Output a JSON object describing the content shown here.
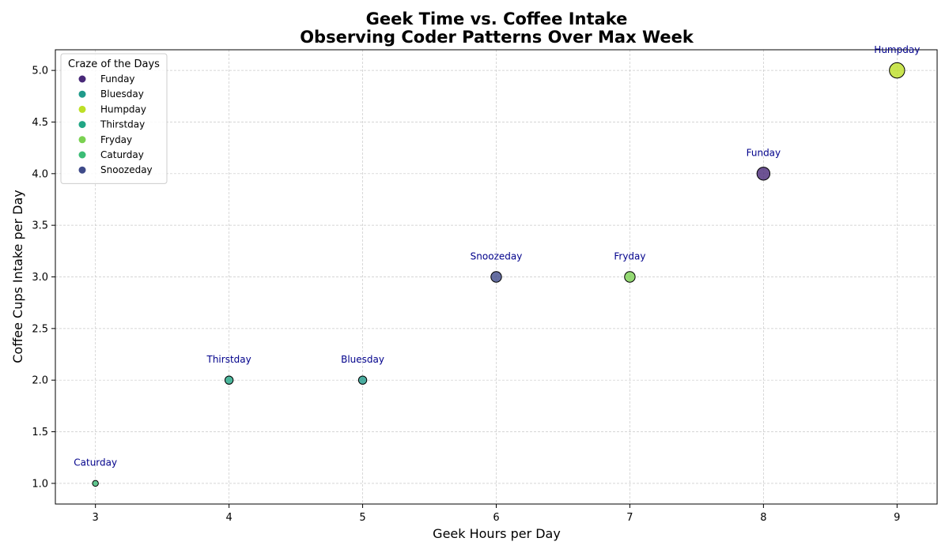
{
  "chart_data": {
    "type": "scatter",
    "title": "Geek Time vs. Coffee Intake",
    "subtitle": "Observing Coder Patterns Over Max Week",
    "xlabel": "Geek Hours per Day",
    "ylabel": "Coffee Cups Intake per Day",
    "xlim": [
      2.7,
      9.3
    ],
    "ylim": [
      0.8,
      5.2
    ],
    "xticks": [
      3,
      4,
      5,
      6,
      7,
      8,
      9
    ],
    "yticks": [
      1.0,
      1.5,
      2.0,
      2.5,
      3.0,
      3.5,
      4.0,
      4.5,
      5.0
    ],
    "grid": true,
    "legend": {
      "title": "Craze of the Days",
      "position": "top-left"
    },
    "label_color": "#00008b",
    "points": [
      {
        "label": "Funday",
        "x": 8,
        "y": 4,
        "color": "#482878"
      },
      {
        "label": "Bluesday",
        "x": 5,
        "y": 2,
        "color": "#1f9a8a"
      },
      {
        "label": "Humpday",
        "x": 9,
        "y": 5,
        "color": "#bddf26"
      },
      {
        "label": "Thirstday",
        "x": 4,
        "y": 2,
        "color": "#21a685"
      },
      {
        "label": "Fryday",
        "x": 7,
        "y": 3,
        "color": "#7ad151"
      },
      {
        "label": "Caturday",
        "x": 3,
        "y": 1,
        "color": "#3bbc75"
      },
      {
        "label": "Snoozeday",
        "x": 6,
        "y": 3,
        "color": "#3e4a89"
      }
    ]
  }
}
